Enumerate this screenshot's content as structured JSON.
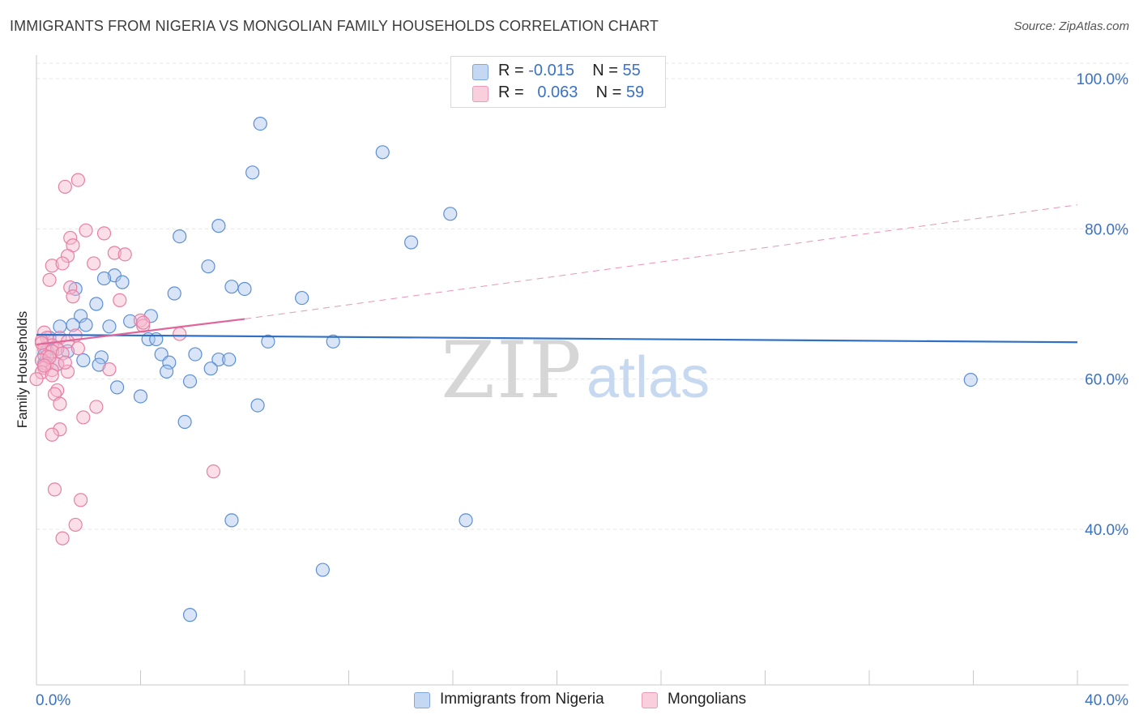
{
  "title": "IMMIGRANTS FROM NIGERIA VS MONGOLIAN FAMILY HOUSEHOLDS CORRELATION CHART",
  "source": "Source: ZipAtlas.com",
  "watermark": {
    "zip": "ZIP",
    "atlas": "atlas"
  },
  "colors": {
    "blue_fill": "#aac6ec",
    "blue_stroke": "#5b8fd6",
    "blue_line": "#2f6fc4",
    "pink_fill": "#f6b8cd",
    "pink_stroke": "#e77fa4",
    "pink_line": "#e0669a",
    "tick_text": "#3a72c4",
    "grid": "#e4e4e4"
  },
  "legend": {
    "rows": [
      {
        "r_label": "R = ",
        "r_value": "-0.015",
        "n_label": "N = ",
        "n_value": "55"
      },
      {
        "r_label": "R = ",
        "r_value": "0.063",
        "n_label": "N = ",
        "n_value": "59"
      }
    ]
  },
  "chart_data": {
    "type": "scatter",
    "title": "IMMIGRANTS FROM NIGERIA VS MONGOLIAN FAMILY HOUSEHOLDS CORRELATION CHART",
    "xlabel": "",
    "ylabel": "Family Households",
    "xlim": [
      0,
      40
    ],
    "ylim": [
      22,
      103
    ],
    "x_tick_labels": [
      {
        "value": 0,
        "label": "0.0%"
      },
      {
        "value": 40,
        "label": "40.0%"
      }
    ],
    "y_tick_labels": [
      {
        "value": 100,
        "label": "100.0%"
      },
      {
        "value": 80,
        "label": "80.0%"
      },
      {
        "value": 60,
        "label": "60.0%"
      },
      {
        "value": 40,
        "label": "40.0%"
      }
    ],
    "series": [
      {
        "name": "Immigrants from Nigeria",
        "color": "blue",
        "r": -0.015,
        "n": 55,
        "trend": {
          "x0": 0,
          "y0": 65.9,
          "x1": 40,
          "y1": 64.9,
          "dashed_to": null
        },
        "points": [
          [
            8.6,
            94.0
          ],
          [
            13.3,
            90.2
          ],
          [
            8.3,
            87.5
          ],
          [
            15.9,
            82.0
          ],
          [
            7.0,
            80.4
          ],
          [
            5.5,
            79.0
          ],
          [
            14.4,
            78.2
          ],
          [
            6.6,
            75.0
          ],
          [
            3.0,
            73.8
          ],
          [
            2.6,
            73.4
          ],
          [
            3.3,
            72.9
          ],
          [
            7.5,
            72.3
          ],
          [
            8.0,
            72.0
          ],
          [
            1.5,
            72.0
          ],
          [
            5.3,
            71.4
          ],
          [
            10.2,
            70.8
          ],
          [
            2.3,
            70.0
          ],
          [
            1.7,
            68.4
          ],
          [
            4.4,
            68.4
          ],
          [
            3.6,
            67.7
          ],
          [
            1.4,
            67.2
          ],
          [
            1.9,
            67.2
          ],
          [
            0.9,
            67.0
          ],
          [
            2.8,
            67.0
          ],
          [
            0.5,
            65.5
          ],
          [
            4.3,
            65.3
          ],
          [
            4.6,
            65.3
          ],
          [
            8.9,
            65.0
          ],
          [
            11.4,
            65.0
          ],
          [
            0.8,
            64.0
          ],
          [
            0.4,
            63.8
          ],
          [
            4.8,
            63.3
          ],
          [
            6.1,
            63.3
          ],
          [
            2.5,
            62.9
          ],
          [
            7.0,
            62.6
          ],
          [
            1.8,
            62.5
          ],
          [
            7.4,
            62.6
          ],
          [
            5.1,
            62.2
          ],
          [
            0.3,
            62.1
          ],
          [
            0.8,
            62.0
          ],
          [
            2.4,
            61.9
          ],
          [
            6.7,
            61.4
          ],
          [
            5.0,
            61.0
          ],
          [
            35.9,
            59.9
          ],
          [
            5.9,
            59.7
          ],
          [
            3.1,
            58.9
          ],
          [
            4.0,
            57.7
          ],
          [
            8.5,
            56.5
          ],
          [
            5.7,
            54.3
          ],
          [
            7.5,
            41.2
          ],
          [
            16.5,
            41.2
          ],
          [
            11.0,
            34.6
          ],
          [
            5.9,
            28.6
          ],
          [
            0.3,
            63.2
          ],
          [
            1.2,
            63.7
          ]
        ]
      },
      {
        "name": "Mongolians",
        "color": "pink",
        "r": 0.063,
        "n": 59,
        "trend": {
          "x0": 0,
          "y0": 64.6,
          "x1": 8.0,
          "y1": 68.0,
          "dashed_to": {
            "x": 40,
            "y": 83.2
          }
        },
        "points": [
          [
            1.6,
            86.5
          ],
          [
            1.1,
            85.6
          ],
          [
            2.6,
            79.4
          ],
          [
            1.9,
            79.8
          ],
          [
            1.3,
            78.8
          ],
          [
            1.4,
            77.8
          ],
          [
            3.0,
            76.8
          ],
          [
            3.4,
            76.6
          ],
          [
            1.2,
            76.4
          ],
          [
            0.6,
            75.1
          ],
          [
            1.0,
            75.4
          ],
          [
            2.2,
            75.4
          ],
          [
            0.5,
            73.2
          ],
          [
            1.3,
            72.2
          ],
          [
            1.4,
            71.0
          ],
          [
            3.2,
            70.5
          ],
          [
            4.0,
            67.8
          ],
          [
            4.1,
            67.1
          ],
          [
            0.3,
            66.2
          ],
          [
            1.5,
            65.8
          ],
          [
            5.5,
            66.0
          ],
          [
            0.4,
            65.5
          ],
          [
            0.9,
            65.5
          ],
          [
            0.2,
            65.1
          ],
          [
            1.2,
            65.0
          ],
          [
            0.6,
            64.5
          ],
          [
            1.6,
            64.1
          ],
          [
            0.3,
            64.0
          ],
          [
            0.8,
            64.0
          ],
          [
            0.6,
            63.7
          ],
          [
            1.0,
            63.4
          ],
          [
            0.4,
            63.0
          ],
          [
            0.2,
            62.5
          ],
          [
            0.4,
            62.0
          ],
          [
            0.8,
            62.0
          ],
          [
            0.3,
            61.5
          ],
          [
            0.6,
            61.2
          ],
          [
            2.8,
            61.3
          ],
          [
            1.2,
            61.0
          ],
          [
            0.2,
            60.9
          ],
          [
            0.6,
            60.5
          ],
          [
            0.0,
            60.0
          ],
          [
            0.8,
            58.5
          ],
          [
            0.7,
            58.0
          ],
          [
            0.9,
            56.7
          ],
          [
            2.3,
            56.3
          ],
          [
            1.8,
            54.9
          ],
          [
            0.9,
            53.3
          ],
          [
            0.6,
            52.6
          ],
          [
            6.8,
            47.7
          ],
          [
            0.7,
            45.3
          ],
          [
            1.7,
            43.9
          ],
          [
            1.5,
            40.6
          ],
          [
            1.0,
            38.8
          ],
          [
            0.2,
            64.8
          ],
          [
            0.5,
            62.9
          ],
          [
            1.1,
            62.2
          ],
          [
            0.3,
            61.8
          ],
          [
            4.1,
            67.5
          ]
        ]
      }
    ],
    "legend_labels": [
      "Immigrants from Nigeria",
      "Mongolians"
    ]
  }
}
